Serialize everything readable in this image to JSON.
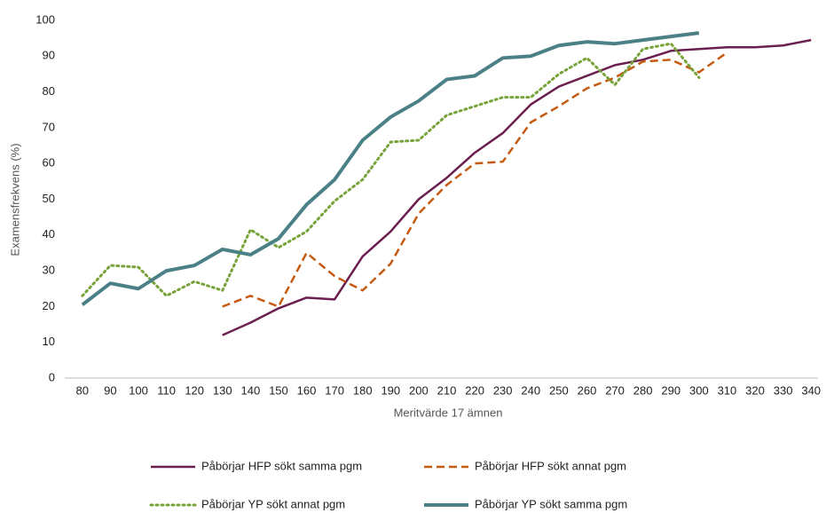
{
  "chart_data": {
    "type": "line",
    "x_label": "Meritvärde 17 ämnen",
    "y_label": "Examensfrekvens (%)",
    "x": [
      80,
      90,
      100,
      110,
      120,
      130,
      140,
      150,
      160,
      170,
      180,
      190,
      200,
      210,
      220,
      230,
      240,
      250,
      260,
      270,
      280,
      290,
      300,
      310,
      320,
      330,
      340
    ],
    "xlim": [
      75,
      345
    ],
    "xticks": [
      80,
      90,
      100,
      110,
      120,
      130,
      140,
      150,
      160,
      170,
      180,
      190,
      200,
      210,
      220,
      230,
      240,
      250,
      260,
      270,
      280,
      290,
      300,
      310,
      320,
      330,
      340
    ],
    "ylim": [
      0,
      100
    ],
    "yticks": [
      0,
      10,
      20,
      30,
      40,
      50,
      60,
      70,
      80,
      90,
      100
    ],
    "grid": false,
    "legend": "bottom",
    "series": [
      {
        "name": "Påbörjar HFP sökt samma pgm",
        "color": "#6b1f4f",
        "dash": "solid",
        "width": 2.5,
        "values": [
          null,
          null,
          null,
          null,
          null,
          12,
          15.5,
          19.5,
          22.5,
          22,
          34,
          41,
          50,
          56,
          63,
          68.5,
          76.5,
          81.5,
          84.5,
          87.5,
          89,
          91.5,
          92,
          92.5,
          92.5,
          93,
          94.5
        ]
      },
      {
        "name": "Påbörjar HFP sökt annat pgm",
        "color": "#c55a11",
        "dash": "dashed",
        "width": 2.5,
        "values": [
          null,
          null,
          null,
          null,
          null,
          20,
          23,
          20,
          35,
          28.5,
          24.5,
          32,
          46,
          54,
          60,
          60.5,
          71.5,
          76,
          81,
          84,
          88.5,
          89,
          85.5,
          91,
          null,
          null,
          null
        ]
      },
      {
        "name": "Påbörjar YP sökt annat pgm",
        "color": "#77a33a",
        "dash": "dotted",
        "width": 3,
        "values": [
          23,
          31.5,
          31,
          23,
          27,
          24.5,
          41.5,
          36.5,
          41,
          49.5,
          55.5,
          66,
          66.5,
          73.5,
          76,
          78.5,
          78.5,
          85,
          89.5,
          82,
          92,
          93.5,
          84,
          null,
          null,
          null,
          null
        ]
      },
      {
        "name": "Påbörjar YP sökt samma pgm",
        "color": "#4b8087",
        "dash": "solid",
        "width": 4,
        "values": [
          20.5,
          26.5,
          25,
          30,
          31.5,
          36,
          34.5,
          39,
          48.5,
          55.5,
          66.5,
          73,
          77.5,
          83.5,
          84.5,
          89.5,
          90,
          93,
          94,
          93.5,
          94.5,
          95.5,
          96.5,
          null,
          null,
          null,
          null
        ]
      }
    ]
  }
}
